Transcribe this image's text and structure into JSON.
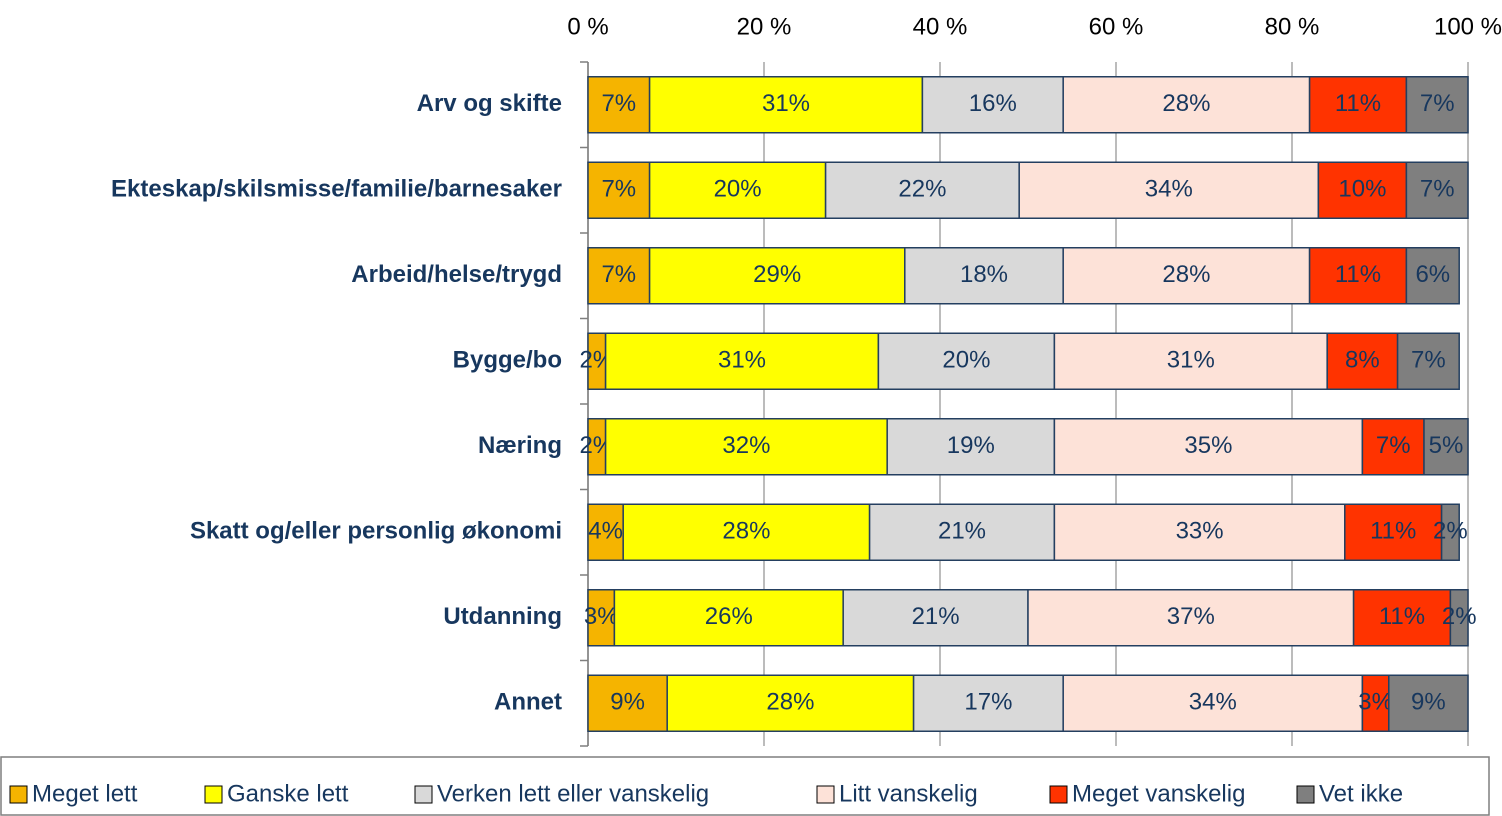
{
  "chart_data": {
    "type": "stacked_barh",
    "categories": [
      "Arv og skifte",
      "Ekteskap/skilsmisse/familie/barnesaker",
      "Arbeid/helse/trygd",
      "Bygge/bo",
      "Næring",
      "Skatt og/eller personlig økonomi",
      "Utdanning",
      "Annet"
    ],
    "series": [
      {
        "name": "Meget lett",
        "color": "#f5b400",
        "values": [
          7,
          7,
          7,
          2,
          2,
          4,
          3,
          9
        ],
        "value_labels": [
          "7%",
          "7%",
          "7%",
          "2%",
          "2%",
          "4%",
          "3%",
          "9%"
        ]
      },
      {
        "name": "Ganske lett",
        "color": "#ffff00",
        "values": [
          31,
          20,
          29,
          31,
          32,
          28,
          26,
          28
        ],
        "value_labels": [
          "31%",
          "20%",
          "29%",
          "31%",
          "32%",
          "28%",
          "26%",
          "28%"
        ]
      },
      {
        "name": "Verken lett eller vanskelig",
        "color": "#d9d9d9",
        "values": [
          16,
          22,
          18,
          20,
          19,
          21,
          21,
          17
        ],
        "value_labels": [
          "16%",
          "22%",
          "18%",
          "20%",
          "19%",
          "21%",
          "21%",
          "17%"
        ]
      },
      {
        "name": "Litt vanskelig",
        "color": "#fde2d8",
        "values": [
          28,
          34,
          28,
          31,
          35,
          33,
          37,
          34
        ],
        "value_labels": [
          "28%",
          "34%",
          "28%",
          "31%",
          "35%",
          "33%",
          "37%",
          "34%"
        ]
      },
      {
        "name": "Meget vanskelig",
        "color": "#ff3300",
        "values": [
          11,
          10,
          11,
          8,
          7,
          11,
          11,
          3
        ],
        "value_labels": [
          "11%",
          "10%",
          "11%",
          "8%",
          "7%",
          "11%",
          "11%",
          "3%"
        ]
      },
      {
        "name": "Vet ikke",
        "color": "#7f7f7f",
        "values": [
          7,
          7,
          6,
          7,
          5,
          2,
          2,
          9
        ],
        "value_labels": [
          "7%",
          "7%",
          "6%",
          "7%",
          "5%",
          "2%",
          "2%",
          "9%"
        ]
      }
    ],
    "xlim": [
      0,
      100
    ],
    "xticks": [
      {
        "value": 0,
        "label": "0 %"
      },
      {
        "value": 20,
        "label": "20 %"
      },
      {
        "value": 40,
        "label": "40 %"
      },
      {
        "value": 60,
        "label": "60 %"
      },
      {
        "value": 80,
        "label": "80 %"
      },
      {
        "value": 100,
        "label": "100 %"
      }
    ],
    "grid": true,
    "legend": "bottom"
  }
}
